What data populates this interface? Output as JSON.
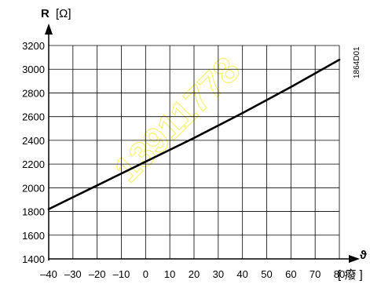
{
  "chart_data": {
    "type": "line",
    "title": "",
    "ylabel_symbol": "R",
    "ylabel_unit": "[Ω]",
    "xlabel_symbol": "ϑ",
    "xlabel_unit_open": "[",
    "xlabel_unit": "癈",
    "xlabel_unit_close": "]",
    "xlim": [
      -40,
      80
    ],
    "ylim": [
      1400,
      3200
    ],
    "x_ticks": [
      -40,
      -30,
      -20,
      -10,
      0,
      10,
      20,
      30,
      40,
      50,
      60,
      70,
      80
    ],
    "x_tick_labels": [
      "–40",
      "–30",
      "–20",
      "–10",
      "0",
      "10",
      "20",
      "30",
      "40",
      "50",
      "60",
      "70",
      "80"
    ],
    "y_ticks": [
      1400,
      1600,
      1800,
      2000,
      2200,
      2400,
      2600,
      2800,
      3000,
      3200
    ],
    "y_tick_labels": [
      "1400",
      "1600",
      "1800",
      "2000",
      "2200",
      "2400",
      "2600",
      "2800",
      "3000",
      "3200"
    ],
    "grid": true,
    "series": [
      {
        "x": [
          -40,
          -20,
          0,
          20,
          40,
          60,
          80
        ],
        "y": [
          1820,
          2020,
          2220,
          2420,
          2630,
          2850,
          3080
        ]
      }
    ],
    "annotations": [
      "1864D01"
    ],
    "watermark": "13911778"
  }
}
